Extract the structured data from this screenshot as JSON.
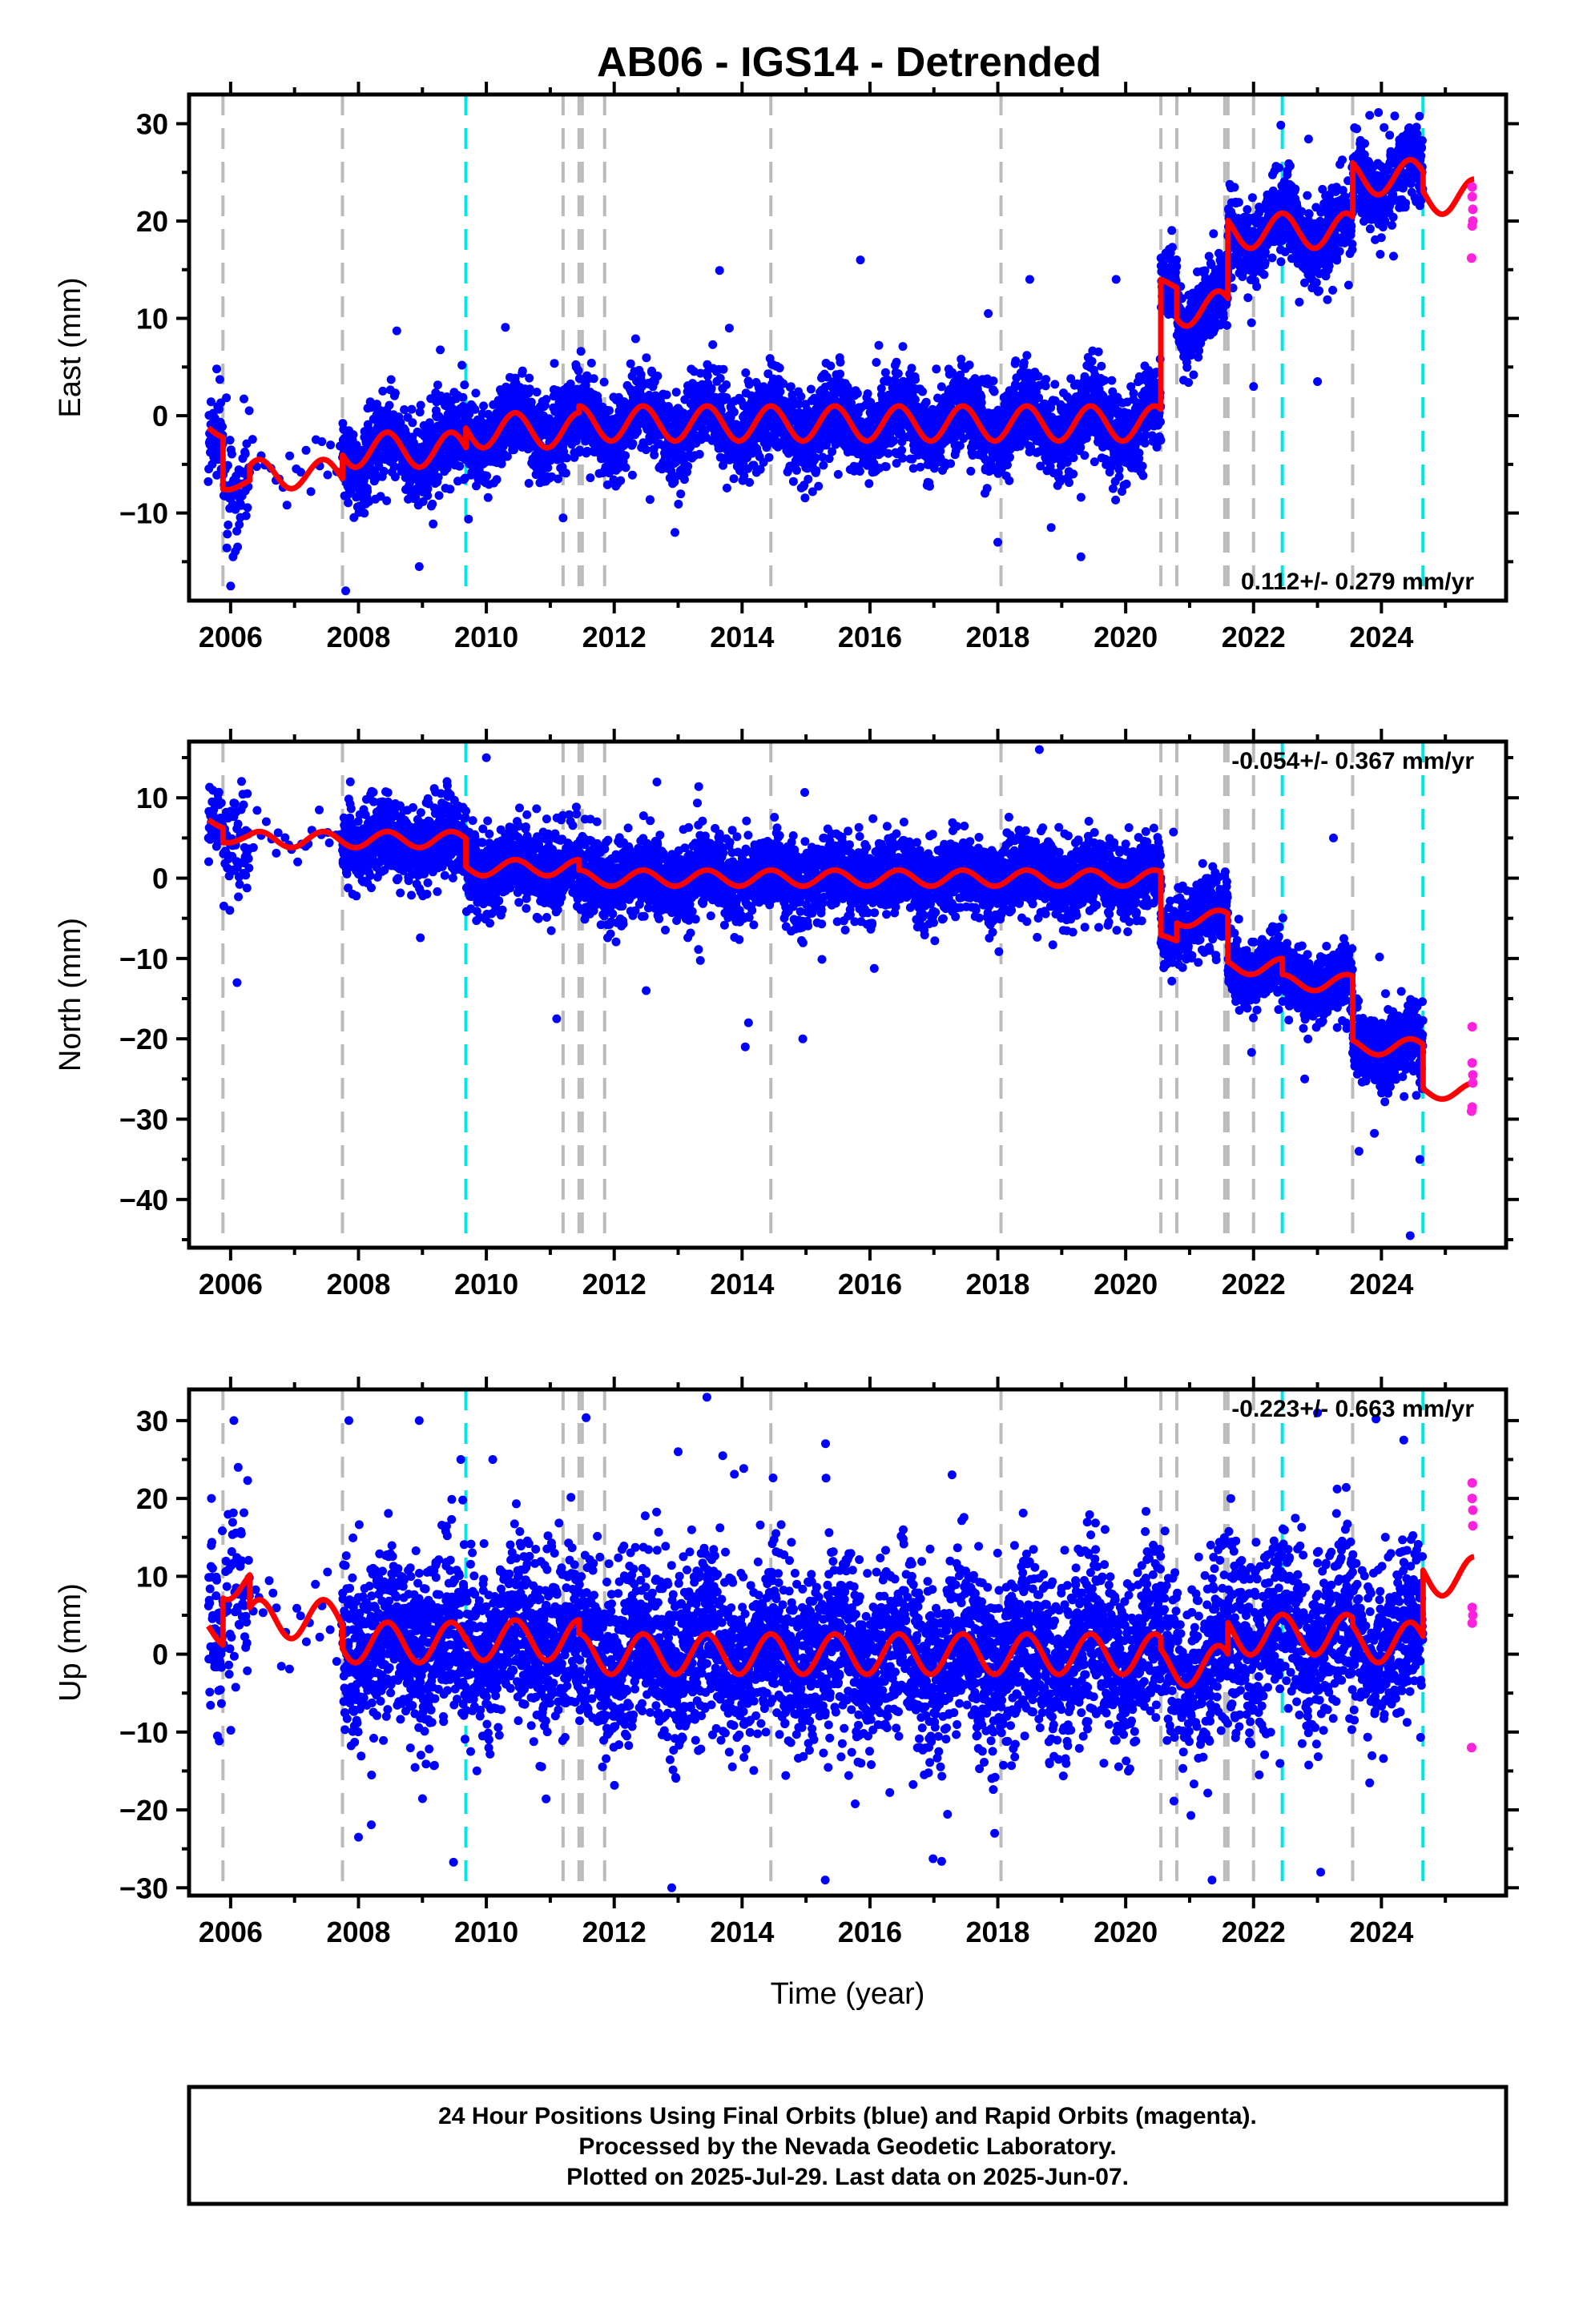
{
  "title": "AB06 - IGS14 - Detrended",
  "footer_lines": [
    "24 Hour Positions Using Final Orbits (blue) and Rapid Orbits (magenta).",
    "Processed by the Nevada Geodetic Laboratory.",
    "Plotted on 2025-Jul-29. Last data on 2025-Jun-07."
  ],
  "colors": {
    "final_points": "#0000ff",
    "rapid_points": "#ff22dd",
    "model_line": "#ff0000",
    "equipment_change": "#bbbbbb",
    "earthquake": "#00e5e5"
  },
  "chart_data": [
    {
      "type": "scatter",
      "xlabel": "",
      "ylabel": "East (mm)",
      "xlim": [
        2005.35,
        2025.95
      ],
      "ylim": [
        -19,
        33
      ],
      "xticks": [
        2006,
        2008,
        2010,
        2012,
        2014,
        2016,
        2018,
        2020,
        2022,
        2024
      ],
      "yticks": [
        30,
        20,
        10,
        0,
        -10
      ],
      "rate_text": "0.112+/- 0.279 mm/yr",
      "rate_position": "bottom-right",
      "gray_dashed_x": [
        2005.88,
        2007.75,
        2011.2,
        2011.45,
        2011.5,
        2011.85,
        2014.45,
        2018.05,
        2020.55,
        2020.8,
        2021.55,
        2021.6,
        2022.0,
        2023.55
      ],
      "cyan_dashed_x": [
        2009.68,
        2022.45,
        2024.65
      ],
      "segments": [
        {
          "x0": 2005.65,
          "x1": 2005.88,
          "base": -1.5,
          "amp": 0.8,
          "sigma": 2.0,
          "density": 0.6
        },
        {
          "x0": 2005.88,
          "x1": 2006.3,
          "base": -7,
          "amp": 0.6,
          "sigma": 3.0,
          "density": 0.35
        },
        {
          "x0": 2006.3,
          "x1": 2007.75,
          "base": -6,
          "amp": 1.5,
          "sigma": 1.5,
          "density": 0.04
        },
        {
          "x0": 2007.75,
          "x1": 2009.68,
          "base": -3.5,
          "amp": 1.8,
          "sigma": 2.0,
          "density": 1.0
        },
        {
          "x0": 2009.68,
          "x1": 2011.45,
          "base": -1.5,
          "amp": 1.8,
          "sigma": 2.1,
          "density": 1.0
        },
        {
          "x0": 2011.45,
          "x1": 2020.55,
          "base": -0.8,
          "amp": 1.8,
          "sigma": 2.1,
          "density": 1.0
        },
        {
          "x0": 2020.55,
          "x1": 2020.8,
          "base": 13.5,
          "amp": 0.6,
          "sigma": 2.0,
          "density": 1.0
        },
        {
          "x0": 2020.8,
          "x1": 2021.6,
          "base": 11,
          "amp": 1.8,
          "sigma": 2.0,
          "density": 1.0
        },
        {
          "x0": 2021.6,
          "x1": 2023.55,
          "base": 19,
          "amp": 1.8,
          "sigma": 2.0,
          "density": 1.0
        },
        {
          "x0": 2023.55,
          "x1": 2024.65,
          "base": 24.5,
          "amp": 1.8,
          "sigma": 2.0,
          "density": 1.0
        }
      ],
      "rapid_points": [
        {
          "x": 2025.42,
          "y": 23.5
        },
        {
          "x": 2025.42,
          "y": 22.5
        },
        {
          "x": 2025.43,
          "y": 21.2
        },
        {
          "x": 2025.43,
          "y": 20.0
        },
        {
          "x": 2025.42,
          "y": 19.5
        },
        {
          "x": 2025.41,
          "y": 16.2
        }
      ],
      "model_tail": {
        "x0": 2024.65,
        "x1": 2025.45,
        "base": 22.5,
        "amp": 1.8
      },
      "outliers": [
        {
          "x": 2015.85,
          "y": 16.0
        },
        {
          "x": 2018.5,
          "y": 14.0
        },
        {
          "x": 2019.85,
          "y": 14.0
        },
        {
          "x": 2017.85,
          "y": 10.5
        },
        {
          "x": 2013.8,
          "y": 9.0
        },
        {
          "x": 2007.8,
          "y": -18.0
        },
        {
          "x": 2008.95,
          "y": -15.5
        },
        {
          "x": 2018.0,
          "y": -13.0
        },
        {
          "x": 2012.95,
          "y": -12.0
        },
        {
          "x": 2011.2,
          "y": -10.5
        },
        {
          "x": 2019.3,
          "y": -14.5
        },
        {
          "x": 2006.0,
          "y": -17.5
        },
        {
          "x": 2022.0,
          "y": 3.0
        },
        {
          "x": 2023.0,
          "y": 3.5
        }
      ]
    },
    {
      "type": "scatter",
      "xlabel": "",
      "ylabel": "North (mm)",
      "xlim": [
        2005.35,
        2025.95
      ],
      "ylim": [
        -46,
        17
      ],
      "xticks": [
        2006,
        2008,
        2010,
        2012,
        2014,
        2016,
        2018,
        2020,
        2022,
        2024
      ],
      "yticks": [
        10,
        0,
        -10,
        -20,
        -30,
        -40
      ],
      "rate_text": "-0.054+/- 0.367 mm/yr",
      "rate_position": "top-right",
      "gray_dashed_x": [
        2005.88,
        2007.75,
        2011.2,
        2011.45,
        2011.5,
        2011.85,
        2014.45,
        2018.05,
        2020.55,
        2020.8,
        2021.55,
        2021.6,
        2022.0,
        2023.55
      ],
      "cyan_dashed_x": [
        2009.68,
        2022.45,
        2024.65
      ],
      "segments": [
        {
          "x0": 2005.65,
          "x1": 2005.88,
          "base": 7,
          "amp": 0.8,
          "sigma": 2.0,
          "density": 0.6
        },
        {
          "x0": 2005.88,
          "x1": 2006.3,
          "base": 5,
          "amp": 0.6,
          "sigma": 3.5,
          "density": 0.35
        },
        {
          "x0": 2006.3,
          "x1": 2007.75,
          "base": 4.8,
          "amp": 1.0,
          "sigma": 1.5,
          "density": 0.04
        },
        {
          "x0": 2007.75,
          "x1": 2009.68,
          "base": 4.8,
          "amp": 1.0,
          "sigma": 2.3,
          "density": 1.0
        },
        {
          "x0": 2009.68,
          "x1": 2011.45,
          "base": 1.3,
          "amp": 1.0,
          "sigma": 2.4,
          "density": 1.0
        },
        {
          "x0": 2011.45,
          "x1": 2020.55,
          "base": 0,
          "amp": 1.0,
          "sigma": 2.4,
          "density": 1.0
        },
        {
          "x0": 2020.55,
          "x1": 2020.8,
          "base": -7.5,
          "amp": 0.5,
          "sigma": 2.0,
          "density": 1.0
        },
        {
          "x0": 2020.8,
          "x1": 2021.6,
          "base": -5,
          "amp": 1.0,
          "sigma": 2.2,
          "density": 1.0
        },
        {
          "x0": 2021.6,
          "x1": 2022.45,
          "base": -11,
          "amp": 1.0,
          "sigma": 2.0,
          "density": 1.0
        },
        {
          "x0": 2022.45,
          "x1": 2023.55,
          "base": -13,
          "amp": 1.0,
          "sigma": 2.0,
          "density": 1.0
        },
        {
          "x0": 2023.55,
          "x1": 2024.65,
          "base": -21,
          "amp": 1.0,
          "sigma": 2.2,
          "density": 1.0
        }
      ],
      "rapid_points": [
        {
          "x": 2025.42,
          "y": -18.5
        },
        {
          "x": 2025.42,
          "y": -23.0
        },
        {
          "x": 2025.43,
          "y": -24.5
        },
        {
          "x": 2025.43,
          "y": -25.5
        },
        {
          "x": 2025.42,
          "y": -28.5
        },
        {
          "x": 2025.41,
          "y": -29.0
        }
      ],
      "model_tail": {
        "x0": 2024.65,
        "x1": 2025.45,
        "base": -26.5,
        "amp": 1.0
      },
      "outliers": [
        {
          "x": 2018.65,
          "y": 16.0
        },
        {
          "x": 2010.0,
          "y": 15.0
        },
        {
          "x": 2006.1,
          "y": -13.0
        },
        {
          "x": 2011.1,
          "y": -17.5
        },
        {
          "x": 2014.05,
          "y": -21.0
        },
        {
          "x": 2014.1,
          "y": -18.0
        },
        {
          "x": 2014.95,
          "y": -20.0
        },
        {
          "x": 2012.5,
          "y": -14.0
        },
        {
          "x": 2023.25,
          "y": 5.0
        },
        {
          "x": 2023.65,
          "y": -34.0
        },
        {
          "x": 2024.45,
          "y": -44.5
        },
        {
          "x": 2024.6,
          "y": -35.0
        },
        {
          "x": 2022.8,
          "y": -25.0
        }
      ]
    },
    {
      "type": "scatter",
      "xlabel": "Time (year)",
      "ylabel": "Up (mm)",
      "xlim": [
        2005.35,
        2025.95
      ],
      "ylim": [
        -31,
        34
      ],
      "xticks": [
        2006,
        2008,
        2010,
        2012,
        2014,
        2016,
        2018,
        2020,
        2022,
        2024
      ],
      "yticks": [
        30,
        20,
        10,
        0,
        -10,
        -20,
        -30
      ],
      "rate_text": "-0.223+/- 0.663 mm/yr",
      "rate_position": "top-right",
      "gray_dashed_x": [
        2005.88,
        2007.75,
        2011.2,
        2011.45,
        2011.5,
        2011.85,
        2014.45,
        2018.05,
        2020.55,
        2020.8,
        2021.55,
        2021.6,
        2022.0,
        2023.55
      ],
      "cyan_dashed_x": [
        2009.68,
        2022.45,
        2024.65
      ],
      "segments": [
        {
          "x0": 2005.65,
          "x1": 2005.88,
          "base": 3,
          "amp": 2.0,
          "sigma": 6.0,
          "density": 0.6
        },
        {
          "x0": 2005.88,
          "x1": 2006.3,
          "base": 9,
          "amp": 2.0,
          "sigma": 7.0,
          "density": 0.4
        },
        {
          "x0": 2006.3,
          "x1": 2007.75,
          "base": 4.5,
          "amp": 2.5,
          "sigma": 3.0,
          "density": 0.04
        },
        {
          "x0": 2007.75,
          "x1": 2009.68,
          "base": 1.5,
          "amp": 2.6,
          "sigma": 5.5,
          "density": 1.0
        },
        {
          "x0": 2009.68,
          "x1": 2011.45,
          "base": 1.8,
          "amp": 2.6,
          "sigma": 5.5,
          "density": 1.0
        },
        {
          "x0": 2011.45,
          "x1": 2020.55,
          "base": 0,
          "amp": 2.6,
          "sigma": 5.5,
          "density": 1.0
        },
        {
          "x0": 2020.55,
          "x1": 2021.6,
          "base": -1.5,
          "amp": 2.6,
          "sigma": 5.5,
          "density": 0.9
        },
        {
          "x0": 2021.6,
          "x1": 2023.55,
          "base": 2.5,
          "amp": 2.6,
          "sigma": 5.5,
          "density": 0.9
        },
        {
          "x0": 2023.55,
          "x1": 2024.65,
          "base": 1.5,
          "amp": 2.6,
          "sigma": 5.0,
          "density": 0.9
        }
      ],
      "rapid_points": [
        {
          "x": 2025.42,
          "y": 22.0
        },
        {
          "x": 2025.42,
          "y": 20.0
        },
        {
          "x": 2025.43,
          "y": 18.5
        },
        {
          "x": 2025.43,
          "y": 16.5
        },
        {
          "x": 2025.42,
          "y": 6.0
        },
        {
          "x": 2025.43,
          "y": 5.0
        },
        {
          "x": 2025.42,
          "y": 4.0
        },
        {
          "x": 2025.41,
          "y": -12.0
        }
      ],
      "model_tail": {
        "x0": 2024.65,
        "x1": 2025.45,
        "base": 10,
        "amp": 2.5
      },
      "outliers": [
        {
          "x": 2013.45,
          "y": 33.0
        },
        {
          "x": 2023.0,
          "y": 31.0
        },
        {
          "x": 2007.85,
          "y": 30.0
        },
        {
          "x": 2008.95,
          "y": 30.0
        },
        {
          "x": 2006.05,
          "y": 30.0
        },
        {
          "x": 2012.9,
          "y": -30.0
        },
        {
          "x": 2015.3,
          "y": -29.0
        },
        {
          "x": 2021.35,
          "y": -29.0
        },
        {
          "x": 2023.05,
          "y": -28.0
        },
        {
          "x": 2008.0,
          "y": -23.5
        },
        {
          "x": 2017.95,
          "y": -23.0
        },
        {
          "x": 2024.35,
          "y": 27.5
        },
        {
          "x": 2005.7,
          "y": 20.0
        },
        {
          "x": 2009.6,
          "y": 25.0
        },
        {
          "x": 2010.1,
          "y": 25.0
        },
        {
          "x": 2013.0,
          "y": 26.0
        }
      ]
    }
  ]
}
